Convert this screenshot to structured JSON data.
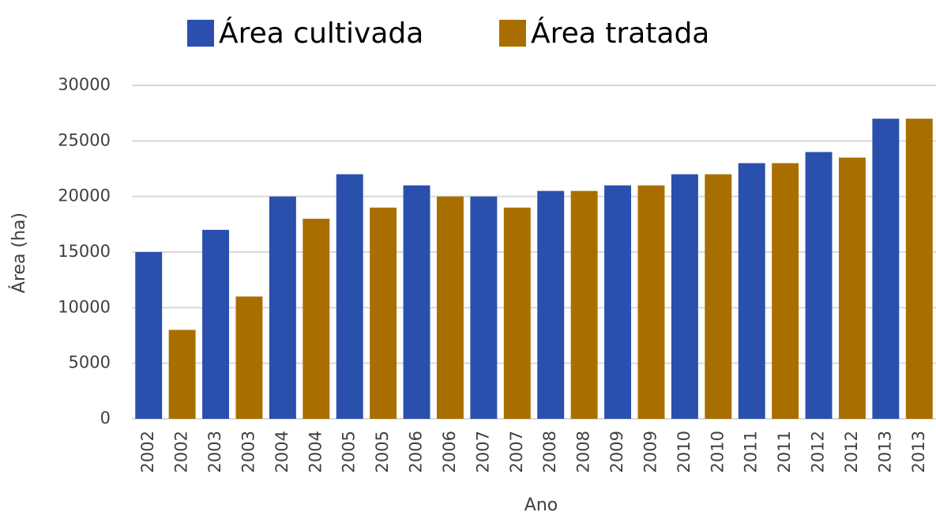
{
  "chart_data": {
    "type": "bar",
    "categories": [
      "2002",
      "2002",
      "2003",
      "2003",
      "2004",
      "2004",
      "2005",
      "2005",
      "2006",
      "2006",
      "2007",
      "2007",
      "2008",
      "2008",
      "2009",
      "2009",
      "2010",
      "2010",
      "2011",
      "2011",
      "2012",
      "2012",
      "2013",
      "2013"
    ],
    "series": [
      {
        "name": "Área cultivada",
        "color": "#2a4fad",
        "values": [
          15000,
          null,
          17000,
          null,
          20000,
          null,
          22000,
          null,
          21000,
          null,
          20000,
          null,
          20500,
          null,
          21000,
          null,
          22000,
          null,
          23000,
          null,
          24000,
          null,
          27000,
          null
        ]
      },
      {
        "name": "Área tratada",
        "color": "#a86f00",
        "values": [
          null,
          8000,
          null,
          11000,
          null,
          18000,
          null,
          19000,
          null,
          20000,
          null,
          19000,
          null,
          20500,
          null,
          21000,
          null,
          22000,
          null,
          23000,
          null,
          23500,
          null,
          27000
        ]
      }
    ],
    "ylabel": "Área (ha)",
    "xlabel": "Ano",
    "ylim": [
      0,
      30000
    ],
    "yticks": [
      0,
      5000,
      10000,
      15000,
      20000,
      25000,
      30000
    ],
    "grid": true,
    "legend": "top"
  }
}
